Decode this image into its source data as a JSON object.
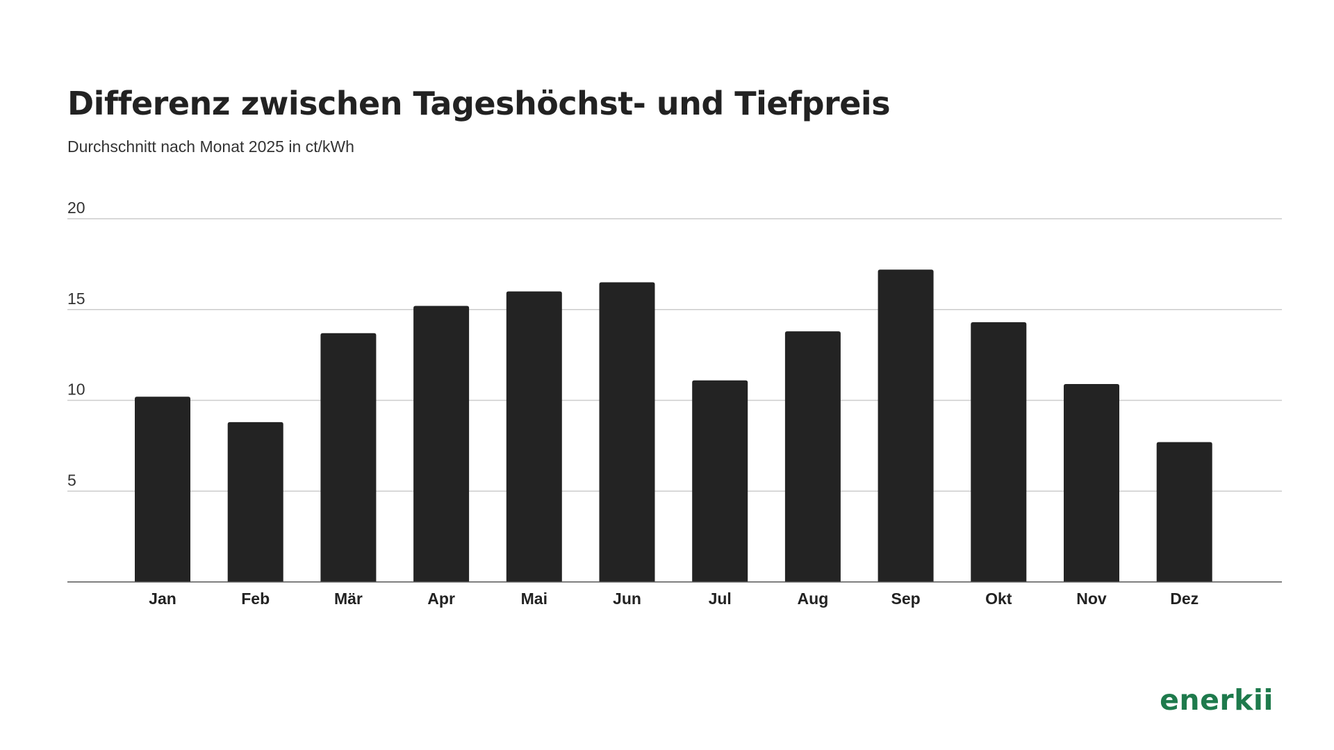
{
  "header": {
    "title": "Differenz zwischen Tageshöchst- und Tiefpreis",
    "subtitle": "Durchschnitt nach Monat 2025 in ct/kWh"
  },
  "brand": {
    "logo_text": "enerkii",
    "color": "#1e7a4c"
  },
  "colors": {
    "bar": "#232323",
    "grid": "#cccccc",
    "axis": "#555555",
    "text": "#222222"
  },
  "chart_data": {
    "type": "bar",
    "categories": [
      "Jan",
      "Feb",
      "Mär",
      "Apr",
      "Mai",
      "Jun",
      "Jul",
      "Aug",
      "Sep",
      "Okt",
      "Nov",
      "Dez"
    ],
    "values": [
      10.2,
      8.8,
      13.7,
      15.2,
      16.0,
      16.5,
      11.1,
      13.8,
      17.2,
      14.3,
      10.9,
      7.7
    ],
    "title": "Differenz zwischen Tageshöchst- und Tiefpreis",
    "subtitle": "Durchschnitt nach Monat 2025 in ct/kWh",
    "xlabel": "",
    "ylabel": "",
    "ylim": [
      0,
      20
    ],
    "yticks": [
      5,
      10,
      15,
      20
    ],
    "grid": true
  }
}
